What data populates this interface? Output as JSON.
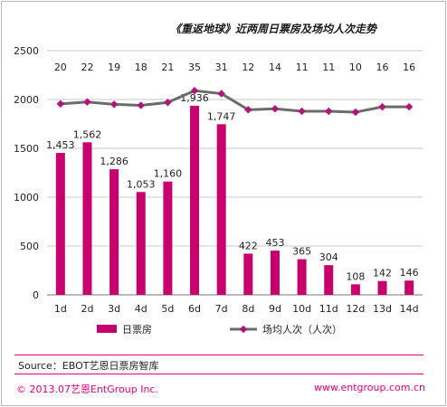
{
  "chart_data": {
    "type": "bar",
    "title": "《重返地球》近两周日票房及场均人次走势",
    "categories": [
      "1d",
      "2d",
      "3d",
      "4d",
      "5d",
      "6d",
      "7d",
      "8d",
      "9d",
      "10d",
      "11d",
      "12d",
      "13d",
      "14d"
    ],
    "ylim": [
      0,
      2500
    ],
    "yticks": [
      0,
      500,
      1000,
      1500,
      2000,
      2500
    ],
    "grid": true,
    "legend_position": "bottom-center",
    "series": [
      {
        "name": "日票房",
        "type": "bar",
        "color": "#c8006e",
        "values": [
          1453,
          1562,
          1286,
          1053,
          1160,
          1936,
          1747,
          422,
          453,
          365,
          304,
          108,
          142,
          146
        ],
        "labels": [
          "1,453",
          "1,562",
          "1,286",
          "1,053",
          "1,160",
          "1,936",
          "1,747",
          "422",
          "453",
          "365",
          "304",
          "108",
          "142",
          "146"
        ]
      },
      {
        "name": "场均人次（人次）",
        "type": "line",
        "color": "#6b6b6b",
        "marker_color": "#b0167a",
        "values": [
          20,
          22,
          19,
          18,
          21,
          35,
          31,
          12,
          14,
          11,
          11,
          10,
          16,
          16
        ],
        "plot_values": [
          1955,
          1975,
          1950,
          1940,
          1970,
          2090,
          2060,
          1895,
          1905,
          1880,
          1880,
          1870,
          1925,
          1925
        ]
      }
    ]
  },
  "source": "Source：EBOT艺恩日票房智库",
  "footer": {
    "left": "© 2013.07艺恩EntGroup Inc.",
    "right": "www.entgroup.com.cn"
  }
}
